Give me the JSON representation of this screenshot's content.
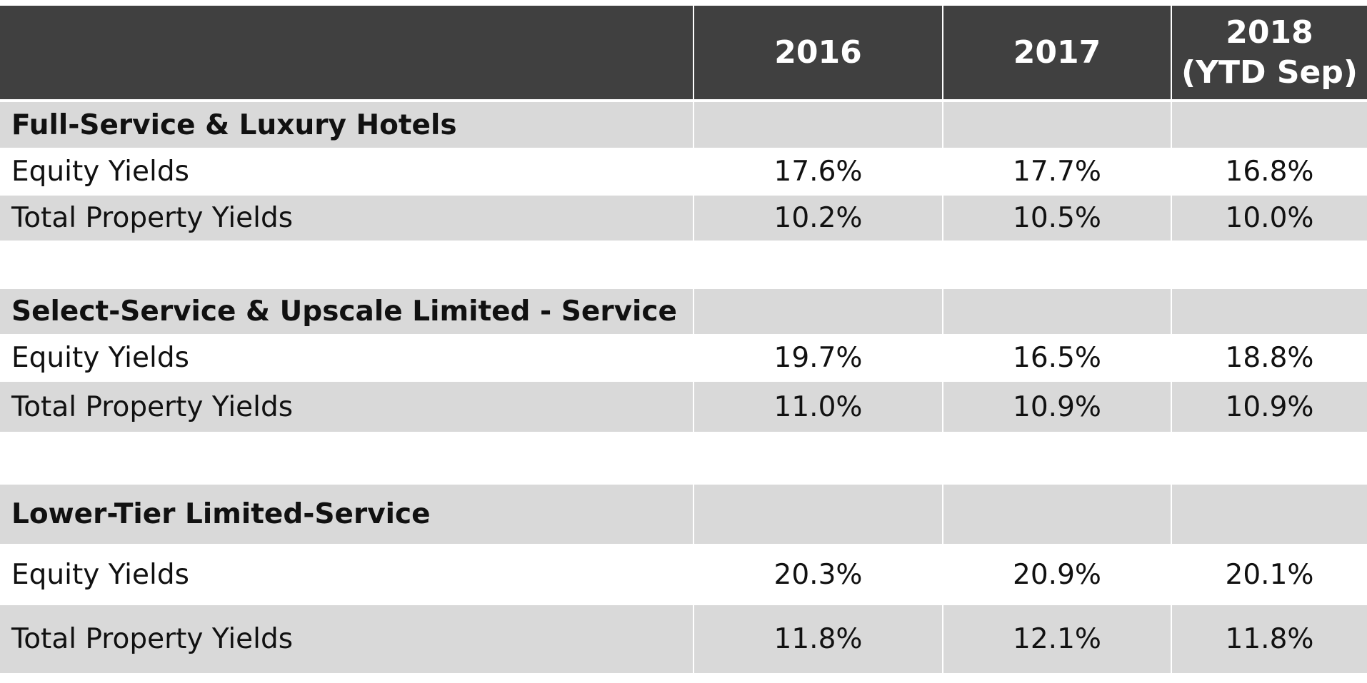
{
  "table": {
    "header": {
      "label_col": "",
      "years": [
        "2016",
        "2017",
        "2018",
        "(YTD Sep)"
      ]
    },
    "groups": [
      {
        "title": "Full-Service & Luxury Hotels",
        "rows": [
          {
            "label": "Equity Yields",
            "values": [
              "17.6%",
              "17.7%",
              "16.8%"
            ]
          },
          {
            "label": "Total Property Yields",
            "values": [
              "10.2%",
              "10.5%",
              "10.0%"
            ]
          }
        ]
      },
      {
        "title": "Select-Service & Upscale Limited - Service",
        "rows": [
          {
            "label": "Equity Yields",
            "values": [
              "19.7%",
              "16.5%",
              "18.8%"
            ]
          },
          {
            "label": "Total Property Yields",
            "values": [
              "11.0%",
              "10.9%",
              "10.9%"
            ]
          }
        ]
      },
      {
        "title": "Lower-Tier Limited-Service",
        "rows": [
          {
            "label": "Equity Yields",
            "values": [
              "20.3%",
              "20.9%",
              "20.1%"
            ]
          },
          {
            "label": "Total Property Yields",
            "values": [
              "11.8%",
              "12.1%",
              "11.8%"
            ]
          }
        ]
      }
    ]
  },
  "colors": {
    "header_bg": "#404040",
    "header_text": "#ffffff",
    "shade_bg": "#d9d9d9",
    "plain_bg": "#ffffff"
  }
}
